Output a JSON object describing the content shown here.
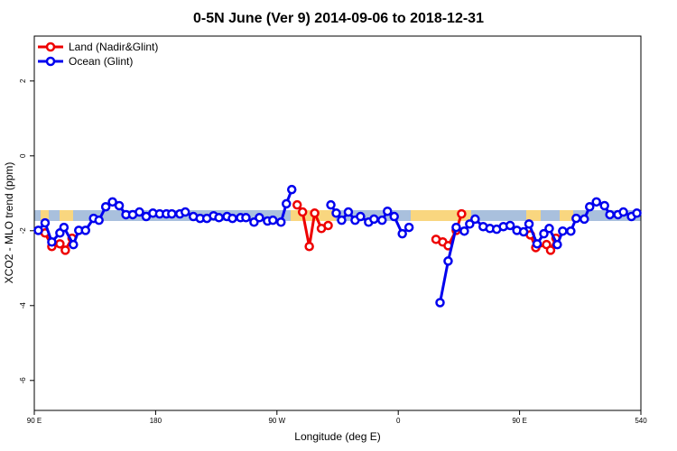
{
  "chart_data": {
    "type": "line",
    "title": "0-5N June (Ver 9)   2014-09-06 to 2018-12-31",
    "x_label": "Longitude (deg E)",
    "y_label": "XCO2 - MLO trend (ppm)",
    "xlim": [
      90,
      540
    ],
    "ylim": [
      -6.8,
      3.2
    ],
    "xticks": [
      {
        "value": 90,
        "label": "90 E"
      },
      180,
      {
        "value": 270,
        "label": "90 W"
      },
      {
        "value": 360,
        "label": "0"
      },
      {
        "value": 450,
        "label": "90 E"
      },
      540
    ],
    "yticks": [
      -6,
      -4,
      -2,
      0,
      2
    ],
    "legend": "upper left",
    "series": [
      {
        "name": "Land (Nadir&Glint)",
        "color": "#ee0000",
        "x": [
          98,
          103,
          109,
          113,
          118,
          null,
          285,
          289,
          294,
          298,
          303,
          308,
          null,
          388,
          393,
          397,
          403,
          407,
          null,
          458,
          462,
          470,
          473,
          477
        ],
        "values": [
          -2.06,
          -2.42,
          -2.35,
          -2.52,
          -2.2,
          null,
          -1.31,
          -1.5,
          -2.42,
          -1.53,
          -1.94,
          -1.86,
          null,
          -2.23,
          -2.3,
          -2.4,
          -1.99,
          -1.55,
          null,
          -2.11,
          -2.45,
          -2.37,
          -2.52,
          -2.2
        ]
      },
      {
        "name": "Ocean (Glint)",
        "color": "#0000ee",
        "x": [
          93,
          98,
          103,
          109,
          112,
          119,
          123,
          128,
          134,
          138,
          143,
          148,
          153,
          158,
          163,
          168,
          173,
          178,
          183,
          188,
          192,
          198,
          202,
          208,
          213,
          218,
          223,
          227,
          233,
          237,
          243,
          247,
          253,
          257,
          263,
          267,
          273,
          277,
          281,
          null,
          310,
          314,
          318,
          323,
          328,
          332,
          338,
          342,
          348,
          352,
          357,
          363,
          368,
          null,
          391,
          397,
          403,
          409,
          413,
          417,
          423,
          428,
          433,
          438,
          443,
          448,
          453,
          457,
          463,
          468,
          472,
          478,
          482,
          488,
          492,
          498,
          502,
          507,
          513,
          517,
          523,
          527,
          533,
          537
        ],
        "values": [
          -1.99,
          -1.79,
          -2.3,
          -2.06,
          -1.91,
          -2.37,
          -1.99,
          -1.99,
          -1.67,
          -1.72,
          -1.36,
          -1.23,
          -1.33,
          -1.57,
          -1.57,
          -1.5,
          -1.62,
          -1.53,
          -1.55,
          -1.55,
          -1.55,
          -1.55,
          -1.5,
          -1.62,
          -1.67,
          -1.67,
          -1.6,
          -1.65,
          -1.62,
          -1.67,
          -1.65,
          -1.65,
          -1.77,
          -1.65,
          -1.74,
          -1.72,
          -1.77,
          -1.28,
          -0.9,
          null,
          -1.31,
          -1.53,
          -1.72,
          -1.5,
          -1.72,
          -1.62,
          -1.77,
          -1.69,
          -1.72,
          -1.48,
          -1.62,
          -2.08,
          -1.91,
          null,
          -3.92,
          -2.81,
          -1.91,
          -2.01,
          -1.82,
          -1.69,
          -1.89,
          -1.94,
          -1.96,
          -1.89,
          -1.86,
          -1.99,
          -2.03,
          -1.82,
          -2.35,
          -2.08,
          -1.94,
          -2.37,
          -2.01,
          -2.01,
          -1.67,
          -1.69,
          -1.36,
          -1.23,
          -1.33,
          -1.57,
          -1.57,
          -1.5,
          -1.62,
          -1.53
        ]
      }
    ]
  }
}
